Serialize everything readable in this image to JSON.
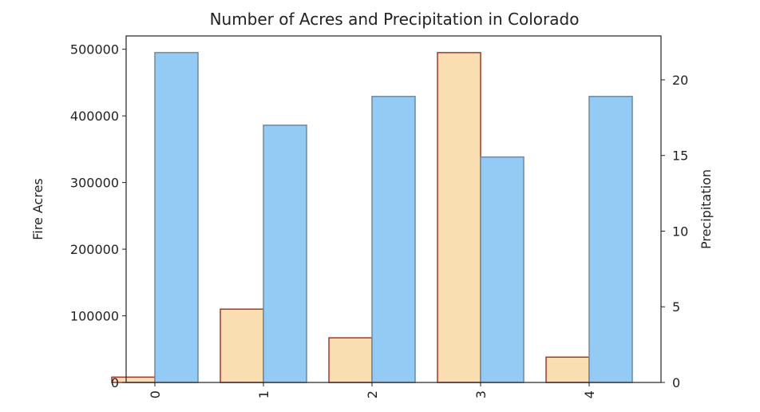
{
  "chart_data": {
    "type": "bar",
    "title": "Number of Acres and Precipitation in Colorado",
    "xlabel": "",
    "categories": [
      "0",
      "1",
      "2",
      "3",
      "4"
    ],
    "left_axis": {
      "label": "Fire Acres",
      "ylim": [
        0,
        520000
      ],
      "ticks": [
        0,
        100000,
        200000,
        300000,
        400000,
        500000
      ],
      "tick_labels": [
        "0",
        "100000",
        "200000",
        "300000",
        "400000",
        "500000"
      ]
    },
    "right_axis": {
      "label": "Precipitation",
      "ylim": [
        0,
        22.9
      ],
      "ticks": [
        0,
        5,
        10,
        15,
        20
      ],
      "tick_labels": [
        "0",
        "5",
        "10",
        "15",
        "20"
      ]
    },
    "series": [
      {
        "axis": "left",
        "values": [
          8000,
          110000,
          67000,
          495000,
          38000
        ],
        "fill": "#f8deb0",
        "stroke": "#a0392a"
      },
      {
        "axis": "right",
        "values": [
          21.8,
          17.0,
          18.9,
          14.9,
          18.9
        ],
        "fill": "#94cbf5",
        "stroke": "#6f89a3"
      }
    ],
    "grid": false
  }
}
